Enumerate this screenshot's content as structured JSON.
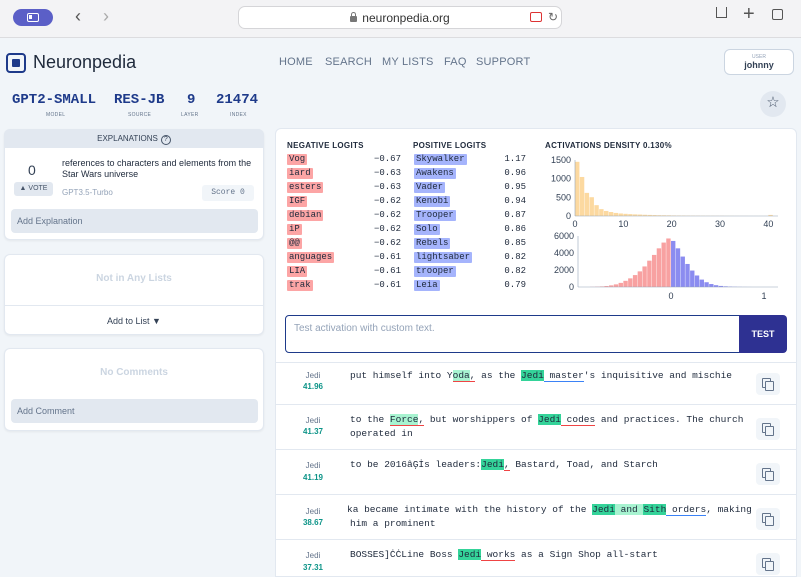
{
  "browser": {
    "url": "neuronpedia.org",
    "back": "‹",
    "forward": "›"
  },
  "app": {
    "name": "Neuronpedia"
  },
  "nav": [
    "HOME",
    "SEARCH",
    "MY LISTS",
    "FAQ",
    "SUPPORT"
  ],
  "user": {
    "label": "USER",
    "name": "johnny"
  },
  "feature": {
    "model": "GPT2-SMALL",
    "model_label": "MODEL",
    "source": "RES-JB",
    "source_label": "SOURCE",
    "layer": "9",
    "layer_label": "LAYER",
    "index": "21474",
    "index_label": "INDEX"
  },
  "explanations": {
    "header": "EXPLANATIONS",
    "votes": "0",
    "vote_label": "▲ VOTE",
    "text": "references to characters and elements from the Star Wars universe",
    "model": "GPT3.5-Turbo",
    "score": "Score 0",
    "add_placeholder": "Add Explanation"
  },
  "lists": {
    "empty": "Not in Any Lists",
    "add": "Add to List ▼"
  },
  "comments": {
    "empty": "No Comments",
    "add_placeholder": "Add Comment"
  },
  "logits": {
    "negative_title": "NEGATIVE LOGITS",
    "positive_title": "POSITIVE LOGITS",
    "negative": [
      {
        "token": "Vog",
        "value": "−0.67"
      },
      {
        "token": "iard",
        "value": "−0.63"
      },
      {
        "token": "esters",
        "value": "−0.63"
      },
      {
        "token": "IGF",
        "value": "−0.62"
      },
      {
        "token": "debian",
        "value": "−0.62"
      },
      {
        "token": "iP",
        "value": "−0.62"
      },
      {
        "token": "@@",
        "value": "−0.62"
      },
      {
        "token": "anguages",
        "value": "−0.61"
      },
      {
        "token": "LIA",
        "value": "−0.61"
      },
      {
        "token": "trak",
        "value": "−0.61"
      }
    ],
    "positive": [
      {
        "token": "Skywalker",
        "value": "1.17"
      },
      {
        "token": "Awakens",
        "value": "0.96"
      },
      {
        "token": "Vader",
        "value": "0.95"
      },
      {
        "token": "Kenobi",
        "value": "0.94"
      },
      {
        "token": "Trooper",
        "value": "0.87"
      },
      {
        "token": "Solo",
        "value": "0.86"
      },
      {
        "token": "Rebels",
        "value": "0.85"
      },
      {
        "token": "lightsaber",
        "value": "0.82"
      },
      {
        "token": "trooper",
        "value": "0.82"
      },
      {
        "token": "Leia",
        "value": "0.79"
      }
    ]
  },
  "chart_data": [
    {
      "type": "bar",
      "title": "ACTIVATIONS DENSITY 0.130%",
      "color": "#fcd9a0",
      "y_ticks": [
        "1500",
        "1000",
        "500",
        "0"
      ],
      "x_ticks": [
        "0",
        "10",
        "20",
        "30",
        "40"
      ],
      "xlim": [
        0,
        42
      ],
      "ylim": [
        0,
        1550
      ],
      "values": [
        1500,
        1080,
        640,
        520,
        300,
        190,
        140,
        110,
        85,
        70,
        60,
        52,
        45,
        40,
        34,
        30,
        26,
        22,
        20,
        18,
        15,
        13,
        12,
        10,
        9,
        8,
        7,
        6,
        6,
        5,
        5,
        4,
        4,
        3,
        3,
        3,
        2,
        2,
        2,
        2,
        30,
        2
      ]
    },
    {
      "type": "bar",
      "y_ticks": [
        "6000",
        "4000",
        "2000",
        "0"
      ],
      "x_ticks": [
        "0",
        "1"
      ],
      "xlim": [
        -1,
        1.15
      ],
      "ylim": [
        0,
        6200
      ],
      "negative_color": "#f8a1a1",
      "positive_color": "#8b8cf0",
      "bins_neg": [
        20,
        40,
        70,
        120,
        200,
        320,
        500,
        750,
        1050,
        1450,
        1900,
        2500,
        3200,
        3900,
        4700,
        5400,
        5900
      ],
      "bins_pos": [
        5600,
        4700,
        3700,
        2800,
        2000,
        1400,
        900,
        580,
        360,
        220,
        130,
        80,
        50,
        30,
        18,
        10,
        5
      ]
    }
  ],
  "test": {
    "placeholder": "Test activation with custom text.",
    "button": "TEST"
  },
  "activations": [
    {
      "label": "Jedi",
      "value": "41.96"
    },
    {
      "label": "Jedi",
      "value": "41.37"
    },
    {
      "label": "Jedi",
      "value": "41.19"
    },
    {
      "label": "Jedi",
      "value": "38.67"
    },
    {
      "label": "Jedi",
      "value": "37.31"
    }
  ],
  "snippets": {
    "s1": [
      "put himself into Y",
      "oda",
      ",",
      " as the ",
      "Jedi",
      " master",
      "'s inquisitive and mischie"
    ],
    "s2": [
      "to the ",
      "Force",
      ",",
      " but worshippers of ",
      "Jedi",
      " codes",
      " and practices. The church",
      "operated in"
    ],
    "s3": [
      "to be 2016âĢİs leaders:",
      "Jedi",
      ",",
      " Bastard, Toad, and Starch"
    ],
    "s4": [
      "ka became intimate with the history of the ",
      "Jedi",
      " and ",
      "Sith",
      " orders",
      ", making",
      "him a prominent"
    ],
    "s5": [
      "BOSSES]ĊĊLine Boss ",
      "Jedi",
      " works",
      " as a Sign Shop all-start"
    ]
  }
}
